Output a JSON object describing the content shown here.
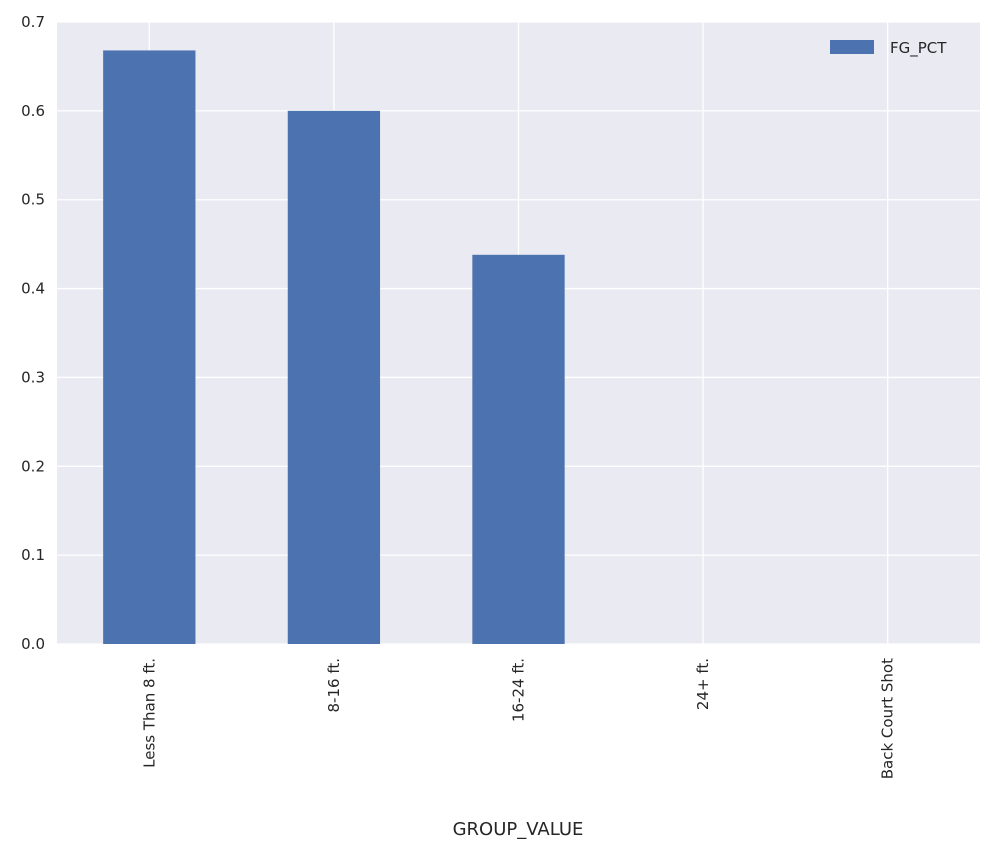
{
  "chart_data": {
    "type": "bar",
    "categories": [
      "Less Than 8 ft.",
      "8-16 ft.",
      "16-24 ft.",
      "24+ ft.",
      "Back Court Shot"
    ],
    "series": [
      {
        "name": "FG_PCT",
        "values": [
          0.668,
          0.6,
          0.438,
          0.0,
          0.0
        ]
      }
    ],
    "xlabel": "GROUP_VALUE",
    "ylabel": "",
    "ylim": [
      0,
      0.7
    ],
    "yticks": [
      "0.0",
      "0.1",
      "0.2",
      "0.3",
      "0.4",
      "0.5",
      "0.6",
      "0.7"
    ],
    "grid": true,
    "legend_position": "top-right",
    "colors": {
      "bar": "#4c72b0",
      "plot_background": "#eaeaf2",
      "grid": "#ffffff"
    }
  }
}
